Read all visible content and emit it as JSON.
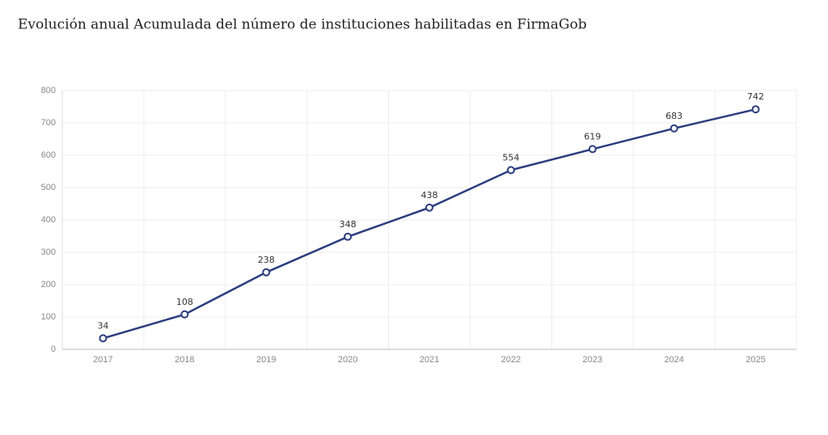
{
  "chart_data": {
    "type": "line",
    "title": "Evolución anual Acumulada del número de instituciones habilitadas en FirmaGob",
    "categories": [
      "2017",
      "2018",
      "2019",
      "2020",
      "2021",
      "2022",
      "2023",
      "2024",
      "2025"
    ],
    "values": [
      34,
      108,
      238,
      348,
      438,
      554,
      619,
      683,
      742
    ],
    "color": "#2b3d7e",
    "ylim": [
      0,
      800
    ],
    "yticks": [
      0,
      100,
      200,
      300,
      400,
      500,
      600,
      700,
      800
    ],
    "grid": true
  }
}
